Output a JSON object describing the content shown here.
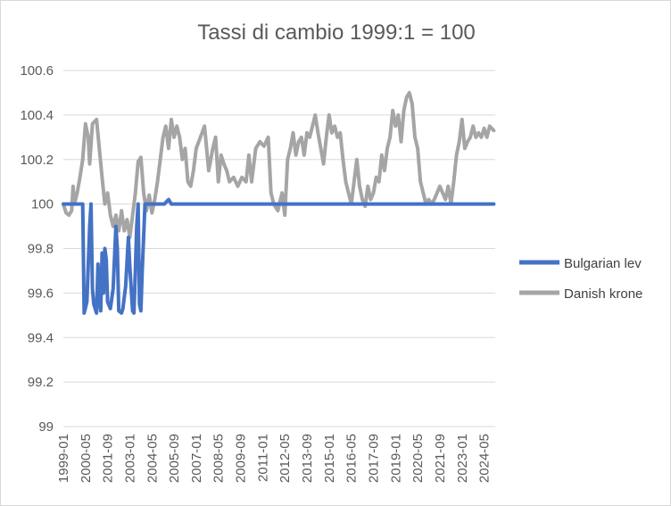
{
  "chart_data": {
    "type": "line",
    "title": "Tassi di cambio 1999:1 = 100",
    "xlabel": "",
    "ylabel": "",
    "ylim": [
      99,
      100.6
    ],
    "ytick_step": 0.2,
    "y_tick_labels": [
      "99",
      "99.2",
      "99.4",
      "99.6",
      "99.8",
      "100",
      "100.2",
      "100.4",
      "100.6"
    ],
    "x_range": [
      "1999-01",
      "2025-01"
    ],
    "x_tick_labels": [
      "1999-01",
      "2000-05",
      "2001-09",
      "2003-01",
      "2004-05",
      "2005-09",
      "2007-01",
      "2008-05",
      "2009-09",
      "2011-01",
      "2012-05",
      "2013-09",
      "2015-01",
      "2016-05",
      "2017-09",
      "2019-01",
      "2020-05",
      "2021-09",
      "2023-01",
      "2024-05"
    ],
    "grid": true,
    "legend_position": "right",
    "series": [
      {
        "name": "Bulgarian lev",
        "color": "#4472c4",
        "points": [
          [
            "1999-01",
            100.0
          ],
          [
            "1999-06",
            100.0
          ],
          [
            "2000-01",
            100.0
          ],
          [
            "2000-03",
            100.0
          ],
          [
            "2000-04",
            99.51
          ],
          [
            "2000-06",
            99.56
          ],
          [
            "2000-08",
            99.9
          ],
          [
            "2000-09",
            100.0
          ],
          [
            "2000-10",
            99.62
          ],
          [
            "2000-11",
            99.55
          ],
          [
            "2001-01",
            99.51
          ],
          [
            "2001-02",
            99.73
          ],
          [
            "2001-03",
            99.58
          ],
          [
            "2001-04",
            99.52
          ],
          [
            "2001-05",
            99.78
          ],
          [
            "2001-06",
            99.6
          ],
          [
            "2001-07",
            99.8
          ],
          [
            "2001-08",
            99.75
          ],
          [
            "2001-09",
            99.56
          ],
          [
            "2001-11",
            99.53
          ],
          [
            "2002-01",
            99.62
          ],
          [
            "2002-03",
            99.9
          ],
          [
            "2002-04",
            99.8
          ],
          [
            "2002-05",
            99.52
          ],
          [
            "2002-07",
            99.51
          ],
          [
            "2002-08",
            99.53
          ],
          [
            "2002-10",
            99.63
          ],
          [
            "2002-12",
            99.85
          ],
          [
            "2003-01",
            99.72
          ],
          [
            "2003-03",
            99.52
          ],
          [
            "2003-04",
            99.51
          ],
          [
            "2003-05",
            99.7
          ],
          [
            "2003-06",
            99.9
          ],
          [
            "2003-07",
            100.0
          ],
          [
            "2003-08",
            99.55
          ],
          [
            "2003-09",
            99.52
          ],
          [
            "2003-10",
            99.7
          ],
          [
            "2003-12",
            100.0
          ],
          [
            "2004-01",
            100.0
          ],
          [
            "2004-02",
            100.0
          ],
          [
            "2004-04",
            100.0
          ],
          [
            "2004-06",
            100.0
          ],
          [
            "2004-09",
            100.0
          ],
          [
            "2005-02",
            100.0
          ],
          [
            "2005-05",
            100.02
          ],
          [
            "2005-07",
            100.0
          ],
          [
            "2006-01",
            100.0
          ],
          [
            "2010-01",
            100.0
          ],
          [
            "2015-01",
            100.0
          ],
          [
            "2020-01",
            100.0
          ],
          [
            "2024-12",
            100.0
          ]
        ]
      },
      {
        "name": "Danish krone",
        "color": "#a5a5a5",
        "points": [
          [
            "1999-01",
            100.0
          ],
          [
            "1999-03",
            99.96
          ],
          [
            "1999-05",
            99.95
          ],
          [
            "1999-07",
            99.97
          ],
          [
            "1999-08",
            100.08
          ],
          [
            "1999-09",
            100.0
          ],
          [
            "1999-11",
            100.05
          ],
          [
            "2000-01",
            100.12
          ],
          [
            "2000-03",
            100.2
          ],
          [
            "2000-05",
            100.36
          ],
          [
            "2000-07",
            100.3
          ],
          [
            "2000-08",
            100.18
          ],
          [
            "2000-10",
            100.36
          ],
          [
            "2001-01",
            100.38
          ],
          [
            "2001-03",
            100.25
          ],
          [
            "2001-05",
            100.12
          ],
          [
            "2001-07",
            100.0
          ],
          [
            "2001-09",
            100.05
          ],
          [
            "2001-11",
            99.95
          ],
          [
            "2002-01",
            99.9
          ],
          [
            "2002-03",
            99.95
          ],
          [
            "2002-05",
            99.88
          ],
          [
            "2002-07",
            99.97
          ],
          [
            "2002-09",
            99.88
          ],
          [
            "2002-11",
            99.93
          ],
          [
            "2003-01",
            99.85
          ],
          [
            "2003-03",
            99.95
          ],
          [
            "2003-05",
            100.05
          ],
          [
            "2003-07",
            100.19
          ],
          [
            "2003-09",
            100.21
          ],
          [
            "2003-11",
            100.05
          ],
          [
            "2004-01",
            99.97
          ],
          [
            "2004-03",
            100.04
          ],
          [
            "2004-05",
            99.96
          ],
          [
            "2004-07",
            100.02
          ],
          [
            "2004-09",
            100.1
          ],
          [
            "2004-11",
            100.2
          ],
          [
            "2005-01",
            100.3
          ],
          [
            "2005-03",
            100.35
          ],
          [
            "2005-05",
            100.25
          ],
          [
            "2005-07",
            100.38
          ],
          [
            "2005-09",
            100.3
          ],
          [
            "2005-11",
            100.35
          ],
          [
            "2006-01",
            100.3
          ],
          [
            "2006-03",
            100.2
          ],
          [
            "2006-05",
            100.25
          ],
          [
            "2006-07",
            100.1
          ],
          [
            "2006-09",
            100.08
          ],
          [
            "2006-11",
            100.15
          ],
          [
            "2007-01",
            100.25
          ],
          [
            "2007-04",
            100.3
          ],
          [
            "2007-07",
            100.35
          ],
          [
            "2007-10",
            100.15
          ],
          [
            "2008-01",
            100.25
          ],
          [
            "2008-03",
            100.3
          ],
          [
            "2008-05",
            100.1
          ],
          [
            "2008-07",
            100.22
          ],
          [
            "2008-09",
            100.18
          ],
          [
            "2008-11",
            100.15
          ],
          [
            "2009-01",
            100.1
          ],
          [
            "2009-04",
            100.12
          ],
          [
            "2009-07",
            100.08
          ],
          [
            "2009-10",
            100.12
          ],
          [
            "2010-01",
            100.1
          ],
          [
            "2010-03",
            100.22
          ],
          [
            "2010-05",
            100.1
          ],
          [
            "2010-08",
            100.25
          ],
          [
            "2010-11",
            100.28
          ],
          [
            "2011-02",
            100.26
          ],
          [
            "2011-05",
            100.3
          ],
          [
            "2011-07",
            100.05
          ],
          [
            "2011-09",
            100.0
          ],
          [
            "2011-12",
            99.97
          ],
          [
            "2012-03",
            100.05
          ],
          [
            "2012-05",
            99.95
          ],
          [
            "2012-07",
            100.2
          ],
          [
            "2012-09",
            100.25
          ],
          [
            "2012-11",
            100.32
          ],
          [
            "2013-01",
            100.22
          ],
          [
            "2013-03",
            100.28
          ],
          [
            "2013-05",
            100.3
          ],
          [
            "2013-07",
            100.22
          ],
          [
            "2013-09",
            100.32
          ],
          [
            "2013-11",
            100.3
          ],
          [
            "2014-01",
            100.35
          ],
          [
            "2014-03",
            100.4
          ],
          [
            "2014-05",
            100.32
          ],
          [
            "2014-07",
            100.25
          ],
          [
            "2014-09",
            100.18
          ],
          [
            "2014-11",
            100.3
          ],
          [
            "2015-01",
            100.4
          ],
          [
            "2015-03",
            100.32
          ],
          [
            "2015-05",
            100.35
          ],
          [
            "2015-07",
            100.3
          ],
          [
            "2015-09",
            100.32
          ],
          [
            "2015-11",
            100.2
          ],
          [
            "2016-01",
            100.1
          ],
          [
            "2016-03",
            100.05
          ],
          [
            "2016-05",
            100.0
          ],
          [
            "2016-07",
            100.1
          ],
          [
            "2016-09",
            100.2
          ],
          [
            "2016-11",
            100.08
          ],
          [
            "2017-01",
            100.02
          ],
          [
            "2017-03",
            99.99
          ],
          [
            "2017-05",
            100.08
          ],
          [
            "2017-07",
            100.02
          ],
          [
            "2017-09",
            100.05
          ],
          [
            "2017-11",
            100.12
          ],
          [
            "2018-01",
            100.1
          ],
          [
            "2018-03",
            100.22
          ],
          [
            "2018-05",
            100.15
          ],
          [
            "2018-07",
            100.25
          ],
          [
            "2018-09",
            100.3
          ],
          [
            "2018-11",
            100.42
          ],
          [
            "2019-01",
            100.35
          ],
          [
            "2019-03",
            100.4
          ],
          [
            "2019-05",
            100.28
          ],
          [
            "2019-07",
            100.42
          ],
          [
            "2019-09",
            100.48
          ],
          [
            "2019-11",
            100.5
          ],
          [
            "2020-01",
            100.45
          ],
          [
            "2020-03",
            100.3
          ],
          [
            "2020-05",
            100.25
          ],
          [
            "2020-07",
            100.1
          ],
          [
            "2020-09",
            100.05
          ],
          [
            "2020-11",
            100.0
          ],
          [
            "2021-01",
            100.02
          ],
          [
            "2021-03",
            100.0
          ],
          [
            "2021-05",
            100.02
          ],
          [
            "2021-07",
            100.05
          ],
          [
            "2021-09",
            100.08
          ],
          [
            "2021-11",
            100.05
          ],
          [
            "2022-01",
            100.02
          ],
          [
            "2022-03",
            100.08
          ],
          [
            "2022-05",
            100.0
          ],
          [
            "2022-07",
            100.1
          ],
          [
            "2022-09",
            100.22
          ],
          [
            "2022-11",
            100.28
          ],
          [
            "2023-01",
            100.38
          ],
          [
            "2023-03",
            100.25
          ],
          [
            "2023-05",
            100.28
          ],
          [
            "2023-07",
            100.3
          ],
          [
            "2023-09",
            100.35
          ],
          [
            "2023-11",
            100.3
          ],
          [
            "2024-01",
            100.32
          ],
          [
            "2024-03",
            100.3
          ],
          [
            "2024-05",
            100.34
          ],
          [
            "2024-07",
            100.3
          ],
          [
            "2024-09",
            100.35
          ],
          [
            "2024-12",
            100.33
          ]
        ]
      }
    ]
  }
}
